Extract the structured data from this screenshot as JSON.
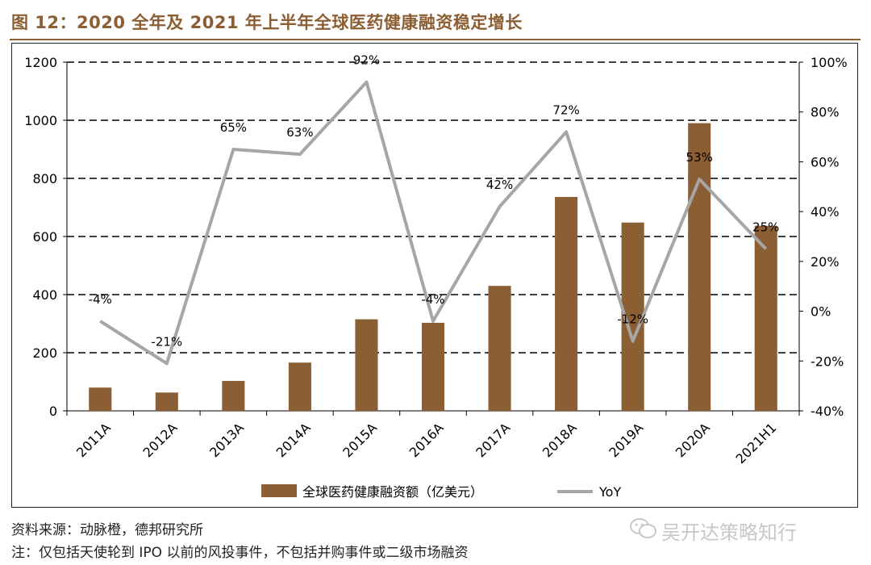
{
  "figure": {
    "title": "图 12：2020 全年及 2021 年上半年全球医药健康融资稳定增长",
    "source": "资料来源：动脉橙，德邦研究所",
    "note": "注：仅包括天使轮到 IPO 以前的风投事件，不包括并购事件或二级市场融资",
    "watermark": "吴开达策略知行",
    "watermark_icon": "wechat-icon"
  },
  "chart_data": {
    "type": "bar",
    "categories": [
      "2011A",
      "2012A",
      "2013A",
      "2014A",
      "2015A",
      "2016A",
      "2017A",
      "2018A",
      "2019A",
      "2020A",
      "2021H1"
    ],
    "series": [
      {
        "name": "全球医药健康融资额（亿美元）",
        "type": "bar",
        "axis": "left",
        "color": "#8B5E34",
        "values": [
          80,
          63,
          103,
          166,
          315,
          303,
          430,
          736,
          648,
          990,
          637
        ]
      },
      {
        "name": "YoY",
        "type": "line",
        "axis": "right",
        "color": "#A6A6A6",
        "values": [
          -4,
          -21,
          65,
          63,
          92,
          -4,
          42,
          72,
          -12,
          53,
          25
        ],
        "labels": [
          "-4%",
          "-21%",
          "65%",
          "63%",
          "92%",
          "-4%",
          "42%",
          "72%",
          "-12%",
          "53%",
          "25%"
        ]
      }
    ],
    "left_axis": {
      "ylim": [
        0,
        1200
      ],
      "ticks": [
        "0",
        "200",
        "400",
        "600",
        "800",
        "1000",
        "1200"
      ]
    },
    "right_axis": {
      "ylim": [
        -40,
        100
      ],
      "ticks": [
        "-40%",
        "-20%",
        "0%",
        "20%",
        "40%",
        "60%",
        "80%",
        "100%"
      ]
    },
    "grid": "dashed horizontal",
    "legend_position": "bottom"
  }
}
